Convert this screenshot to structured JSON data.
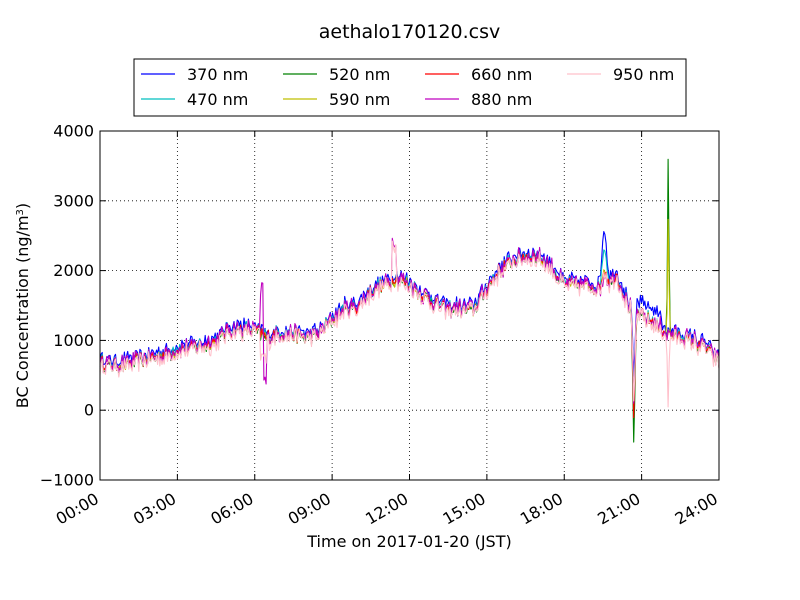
{
  "chart_data": {
    "type": "line",
    "title": "aethalo170120.csv",
    "xlabel": "Time on 2017-01-20 (JST)",
    "ylabel_main": "BC Concentration (ng/m",
    "ylabel_sup": "3",
    "ylabel_end": ")",
    "xlim": [
      0,
      24
    ],
    "ylim": [
      -1000,
      4000
    ],
    "grid": true,
    "legend_position": "top-center",
    "x_ticks": [
      {
        "value": 0,
        "label": "00:00"
      },
      {
        "value": 3,
        "label": "03:00"
      },
      {
        "value": 6,
        "label": "06:00"
      },
      {
        "value": 9,
        "label": "09:00"
      },
      {
        "value": 12,
        "label": "12:00"
      },
      {
        "value": 15,
        "label": "15:00"
      },
      {
        "value": 18,
        "label": "18:00"
      },
      {
        "value": 21,
        "label": "21:00"
      },
      {
        "value": 24,
        "label": "24:00"
      }
    ],
    "y_ticks": [
      {
        "value": -1000,
        "label": "−1000"
      },
      {
        "value": 0,
        "label": "0"
      },
      {
        "value": 1000,
        "label": "1000"
      },
      {
        "value": 2000,
        "label": "2000"
      },
      {
        "value": 3000,
        "label": "3000"
      },
      {
        "value": 4000,
        "label": "4000"
      }
    ],
    "base_profile": {
      "x": [
        0,
        0.5,
        1,
        1.5,
        2,
        2.5,
        3,
        3.5,
        4,
        4.5,
        5,
        5.5,
        6,
        6.5,
        7,
        7.5,
        8,
        8.5,
        9,
        9.5,
        10,
        10.5,
        11,
        11.5,
        12,
        12.5,
        13,
        13.5,
        14,
        14.5,
        15,
        15.5,
        16,
        16.5,
        17,
        17.5,
        18,
        18.5,
        19,
        19.5,
        20,
        20.5,
        21,
        21.5,
        22,
        22.5,
        23,
        23.5,
        24
      ],
      "y": [
        680,
        650,
        660,
        720,
        750,
        790,
        870,
        900,
        940,
        1000,
        1150,
        1150,
        1150,
        1050,
        1100,
        1100,
        1050,
        1100,
        1300,
        1450,
        1500,
        1700,
        1800,
        1900,
        1800,
        1650,
        1550,
        1450,
        1450,
        1450,
        1750,
        2000,
        2150,
        2200,
        2200,
        2050,
        1800,
        1800,
        1800,
        1700,
        1950,
        1500,
        1350,
        1250,
        1100,
        1050,
        1000,
        900,
        700
      ]
    },
    "series": [
      {
        "name": "370 nm",
        "color": "#0000ff",
        "offset": 60,
        "amp": 1.05,
        "special": "uv"
      },
      {
        "name": "470 nm",
        "color": "#00bfbf",
        "offset": 20,
        "amp": 1.0,
        "special": "cyan"
      },
      {
        "name": "520 nm",
        "color": "#008000",
        "offset": -20,
        "amp": 0.95,
        "special": "green"
      },
      {
        "name": "590 nm",
        "color": "#bfbf00",
        "offset": -10,
        "amp": 0.95,
        "special": "yellow"
      },
      {
        "name": "660 nm",
        "color": "#ff0000",
        "offset": 0,
        "amp": 1.0,
        "special": "red"
      },
      {
        "name": "880 nm",
        "color": "#bf00bf",
        "offset": 10,
        "amp": 1.25,
        "special": "magenta"
      },
      {
        "name": "950 nm",
        "color": "#ffc0cb",
        "offset": -40,
        "amp": 1.3,
        "special": "pink"
      }
    ]
  }
}
